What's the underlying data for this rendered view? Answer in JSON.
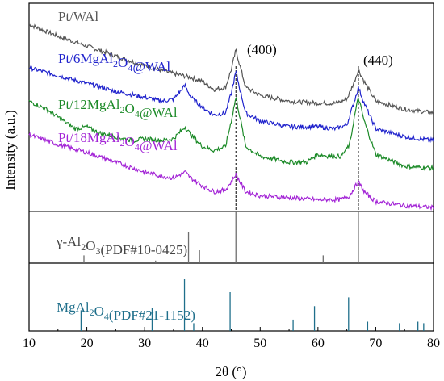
{
  "chart_data": {
    "type": "line",
    "xlabel": "2θ (°)",
    "ylabel": "Intensity (a.u.)",
    "xlim": [
      10,
      80
    ],
    "x_ticks": [
      "10",
      "20",
      "30",
      "40",
      "50",
      "60",
      "70",
      "80"
    ],
    "series": [
      {
        "name": "Pt/WAl",
        "color": "#555555",
        "label_parts": [
          {
            "t": "Pt/WAl",
            "s": false
          }
        ],
        "points": [
          [
            10,
            0.95
          ],
          [
            15,
            0.89
          ],
          [
            20,
            0.84
          ],
          [
            25,
            0.79
          ],
          [
            30,
            0.74
          ],
          [
            35,
            0.7
          ],
          [
            38,
            0.68
          ],
          [
            40,
            0.66
          ],
          [
            42,
            0.62
          ],
          [
            44,
            0.63
          ],
          [
            45,
            0.72
          ],
          [
            45.8,
            0.82
          ],
          [
            46.5,
            0.74
          ],
          [
            47.5,
            0.63
          ],
          [
            50,
            0.59
          ],
          [
            55,
            0.56
          ],
          [
            60,
            0.55
          ],
          [
            63,
            0.55
          ],
          [
            65,
            0.57
          ],
          [
            66.3,
            0.66
          ],
          [
            67,
            0.72
          ],
          [
            68,
            0.66
          ],
          [
            70,
            0.56
          ],
          [
            75,
            0.52
          ],
          [
            80,
            0.5
          ]
        ]
      },
      {
        "name": "Pt/6MgAl2O4@WAl",
        "color": "#1f22cc",
        "label_parts": [
          {
            "t": "Pt/6MgAl",
            "s": false
          },
          {
            "t": "2",
            "s": true
          },
          {
            "t": "O",
            "s": false
          },
          {
            "t": "4",
            "s": true
          },
          {
            "t": "@WAl",
            "s": false
          }
        ],
        "points": [
          [
            10,
            0.73
          ],
          [
            15,
            0.69
          ],
          [
            20,
            0.65
          ],
          [
            25,
            0.61
          ],
          [
            30,
            0.58
          ],
          [
            33,
            0.56
          ],
          [
            35,
            0.57
          ],
          [
            37,
            0.64
          ],
          [
            38,
            0.58
          ],
          [
            40,
            0.53
          ],
          [
            42,
            0.49
          ],
          [
            44,
            0.5
          ],
          [
            45,
            0.6
          ],
          [
            45.8,
            0.71
          ],
          [
            46.5,
            0.62
          ],
          [
            47.5,
            0.5
          ],
          [
            50,
            0.46
          ],
          [
            55,
            0.43
          ],
          [
            60,
            0.43
          ],
          [
            63,
            0.42
          ],
          [
            65,
            0.44
          ],
          [
            66.3,
            0.56
          ],
          [
            67,
            0.63
          ],
          [
            68,
            0.55
          ],
          [
            70,
            0.42
          ],
          [
            75,
            0.38
          ],
          [
            80,
            0.36
          ]
        ]
      },
      {
        "name": "Pt/12MgAl2O4@WAl",
        "color": "#1c8a28",
        "label_parts": [
          {
            "t": "Pt/12MgAl",
            "s": false
          },
          {
            "t": "2",
            "s": true
          },
          {
            "t": "O",
            "s": false
          },
          {
            "t": "4",
            "s": true
          },
          {
            "t": "@WAl",
            "s": false
          }
        ],
        "points": [
          [
            10,
            0.56
          ],
          [
            13,
            0.52
          ],
          [
            15,
            0.48
          ],
          [
            18,
            0.42
          ],
          [
            20,
            0.43
          ],
          [
            22,
            0.4
          ],
          [
            25,
            0.38
          ],
          [
            28,
            0.36
          ],
          [
            30,
            0.37
          ],
          [
            33,
            0.36
          ],
          [
            35,
            0.37
          ],
          [
            37,
            0.43
          ],
          [
            38,
            0.39
          ],
          [
            40,
            0.33
          ],
          [
            42,
            0.31
          ],
          [
            44,
            0.33
          ],
          [
            45,
            0.46
          ],
          [
            45.8,
            0.58
          ],
          [
            46.5,
            0.48
          ],
          [
            47.5,
            0.33
          ],
          [
            50,
            0.28
          ],
          [
            55,
            0.25
          ],
          [
            58,
            0.25
          ],
          [
            60,
            0.29
          ],
          [
            62,
            0.28
          ],
          [
            64,
            0.28
          ],
          [
            65.5,
            0.34
          ],
          [
            66.3,
            0.48
          ],
          [
            67,
            0.58
          ],
          [
            68,
            0.46
          ],
          [
            70,
            0.29
          ],
          [
            75,
            0.23
          ],
          [
            80,
            0.22
          ]
        ]
      },
      {
        "name": "Pt/18MgAl2O4@WAl",
        "color": "#a324d6",
        "label_parts": [
          {
            "t": "Pt/18MgAl",
            "s": false
          },
          {
            "t": "2",
            "s": true
          },
          {
            "t": "O",
            "s": false
          },
          {
            "t": "4",
            "s": true
          },
          {
            "t": "@WAl",
            "s": false
          }
        ],
        "points": [
          [
            10,
            0.39
          ],
          [
            15,
            0.34
          ],
          [
            20,
            0.3
          ],
          [
            25,
            0.25
          ],
          [
            30,
            0.2
          ],
          [
            33,
            0.18
          ],
          [
            35,
            0.17
          ],
          [
            37,
            0.2
          ],
          [
            38,
            0.17
          ],
          [
            40,
            0.13
          ],
          [
            42,
            0.1
          ],
          [
            44,
            0.11
          ],
          [
            45,
            0.15
          ],
          [
            45.8,
            0.19
          ],
          [
            46.5,
            0.15
          ],
          [
            47.5,
            0.1
          ],
          [
            50,
            0.08
          ],
          [
            55,
            0.07
          ],
          [
            60,
            0.06
          ],
          [
            64,
            0.06
          ],
          [
            65.5,
            0.08
          ],
          [
            66.3,
            0.12
          ],
          [
            67,
            0.15
          ],
          [
            68,
            0.1
          ],
          [
            70,
            0.05
          ],
          [
            75,
            0.03
          ],
          [
            80,
            0.02
          ]
        ]
      }
    ],
    "peak_annotations": [
      {
        "label": "(400)",
        "x": 45.8
      },
      {
        "label": "(440)",
        "x": 67.0
      }
    ],
    "references": [
      {
        "name": "γ-Al2O3(PDF#10-0425)",
        "color": "#6e6e6e",
        "label_parts": [
          {
            "t": "γ-Al",
            "s": false
          },
          {
            "t": "2",
            "s": true
          },
          {
            "t": "O",
            "s": false
          },
          {
            "t": "3",
            "s": true
          },
          {
            "t": "(PDF#10-0425)",
            "s": false
          }
        ],
        "lines": [
          [
            19.5,
            0.15
          ],
          [
            31.9,
            0.05
          ],
          [
            37.6,
            0.6
          ],
          [
            39.5,
            0.25
          ],
          [
            45.8,
            1.0
          ],
          [
            60.9,
            0.15
          ],
          [
            67.0,
            1.0
          ]
        ]
      },
      {
        "name": "MgAl2O4(PDF#21-1152)",
        "color": "#1f6f8b",
        "label_parts": [
          {
            "t": "MgAl",
            "s": false
          },
          {
            "t": "2",
            "s": true
          },
          {
            "t": "O",
            "s": false
          },
          {
            "t": "4",
            "s": true
          },
          {
            "t": "(PDF#21-1152)",
            "s": false
          }
        ],
        "lines": [
          [
            19.0,
            0.4
          ],
          [
            31.3,
            0.45
          ],
          [
            36.9,
            1.0
          ],
          [
            38.5,
            0.15
          ],
          [
            44.8,
            0.75
          ],
          [
            55.7,
            0.22
          ],
          [
            59.4,
            0.48
          ],
          [
            65.3,
            0.65
          ],
          [
            68.6,
            0.18
          ],
          [
            74.1,
            0.15
          ],
          [
            77.3,
            0.18
          ],
          [
            78.3,
            0.15
          ]
        ]
      }
    ]
  }
}
